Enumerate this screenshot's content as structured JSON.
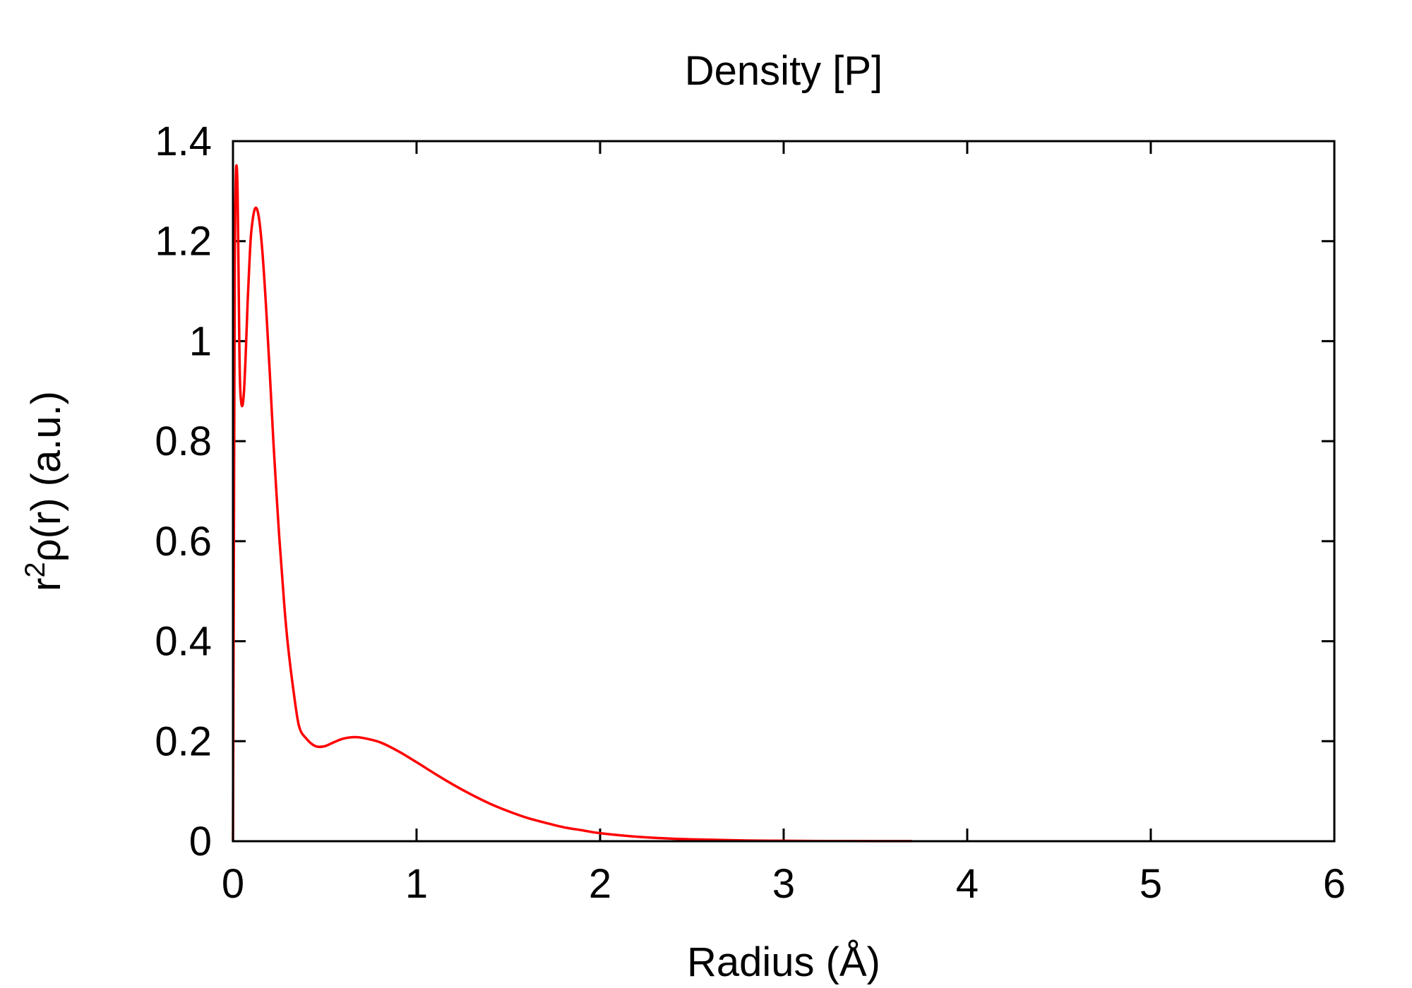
{
  "chart_data": {
    "type": "line",
    "title": "Density [P]",
    "xlabel": "Radius (Å)",
    "ylabel_main": "r",
    "ylabel_sup": "2",
    "ylabel_rest": "ρ(r) (a.u.)",
    "xlim": [
      0,
      6
    ],
    "ylim": [
      0,
      1.4
    ],
    "xticks": [
      0,
      1,
      2,
      3,
      4,
      5,
      6
    ],
    "yticks": [
      0,
      0.2,
      0.4,
      0.6,
      0.8,
      1,
      1.2,
      1.4
    ],
    "grid": false,
    "legend": "none",
    "line_color": "#ff0000",
    "series": [
      {
        "x": [
          0,
          0.005,
          0.01,
          0.015,
          0.02,
          0.025,
          0.03,
          0.035,
          0.04,
          0.05,
          0.06,
          0.07,
          0.08,
          0.09,
          0.1,
          0.12,
          0.14,
          0.16,
          0.18,
          0.2,
          0.22,
          0.25,
          0.28,
          0.3,
          0.33,
          0.36,
          0.4,
          0.45,
          0.5,
          0.55,
          0.6,
          0.65,
          0.7,
          0.8,
          0.9,
          1.0,
          1.1,
          1.2,
          1.3,
          1.4,
          1.5,
          1.6,
          1.7,
          1.8,
          1.9,
          2.0,
          2.2,
          2.4,
          2.6,
          2.8,
          3.0,
          3.2,
          3.5,
          3.7
        ],
        "y": [
          0,
          0.6,
          1.15,
          1.32,
          1.35,
          1.3,
          1.15,
          0.98,
          0.9,
          0.87,
          0.9,
          0.98,
          1.08,
          1.16,
          1.22,
          1.265,
          1.25,
          1.18,
          1.07,
          0.94,
          0.8,
          0.62,
          0.47,
          0.39,
          0.3,
          0.23,
          0.205,
          0.19,
          0.19,
          0.198,
          0.205,
          0.208,
          0.207,
          0.198,
          0.18,
          0.158,
          0.135,
          0.113,
          0.093,
          0.075,
          0.06,
          0.047,
          0.037,
          0.028,
          0.022,
          0.016,
          0.009,
          0.005,
          0.003,
          0.0015,
          0.0008,
          0.0004,
          0.0002,
          0.0001
        ]
      }
    ]
  }
}
